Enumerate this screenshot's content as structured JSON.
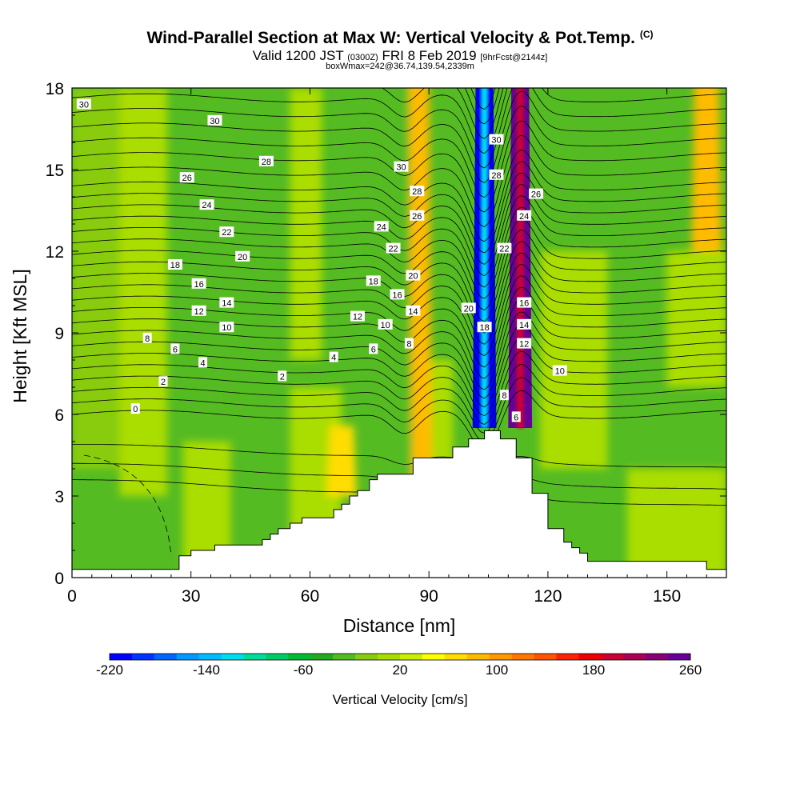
{
  "chart_data": {
    "type": "heatmap",
    "title": "Wind-Parallel Section at Max W: Vertical Velocity & Pot.Temp.",
    "title_tag": "(C)",
    "subtitle_main_a": "Valid 1200 JST",
    "subtitle_small_a": "(0300Z)",
    "subtitle_main_b": "FRI 8 Feb 2019",
    "subtitle_small_b": "[9hrFcst@2144z]",
    "subtitle2": "boxWmax=242@36.74,139.54,2339m",
    "xlabel": "Distance [nm]",
    "ylabel": "Height [Kft MSL]",
    "xlim": [
      0,
      165
    ],
    "ylim": [
      0,
      18
    ],
    "x_ticks": [
      0,
      30,
      60,
      90,
      120,
      150
    ],
    "y_ticks": [
      0,
      3,
      6,
      9,
      12,
      15,
      18
    ],
    "colorbar": {
      "label": "Vertical Velocity [cm/s]",
      "range": [
        -220,
        260
      ],
      "tick_labels": [
        -220,
        -140,
        -60,
        20,
        100,
        180,
        260
      ],
      "colors": [
        "#0000ff",
        "#0033ff",
        "#0066ff",
        "#0099ff",
        "#00bbff",
        "#00ddee",
        "#00dd99",
        "#00cc66",
        "#00bb33",
        "#22aa22",
        "#55bb22",
        "#88cc11",
        "#aadd00",
        "#ccee00",
        "#ffff00",
        "#ffdd00",
        "#ffbb00",
        "#ff9900",
        "#ff7700",
        "#ff5500",
        "#ff2200",
        "#ee0000",
        "#cc0033",
        "#aa0055",
        "#880077",
        "#660099"
      ]
    },
    "vertical_velocity_features": [
      {
        "x": 104,
        "height_range": [
          5.5,
          18
        ],
        "w_cm_s": -210
      },
      {
        "x": 113,
        "height_range": [
          5.5,
          18
        ],
        "w_cm_s": 250
      },
      {
        "x": 87,
        "height_range": [
          3,
          18
        ],
        "w_cm_s": 90
      },
      {
        "x": 82,
        "height_range": [
          3,
          18
        ],
        "w_cm_s": -20
      },
      {
        "x": 36,
        "height_range": [
          6,
          17
        ],
        "w_cm_s": -20
      },
      {
        "x": 68,
        "height_range": [
          3,
          5
        ],
        "w_cm_s": 60
      },
      {
        "x": 145,
        "height_range": [
          9,
          14
        ],
        "w_cm_s": -30
      },
      {
        "x": 160,
        "height_range": [
          12,
          18
        ],
        "w_cm_s": 80
      }
    ],
    "terrain": {
      "x": [
        0,
        10,
        25,
        27,
        30,
        33,
        36,
        39,
        42,
        45,
        48,
        50,
        52,
        55,
        58,
        62,
        64,
        66,
        68,
        70,
        72,
        75,
        77,
        80,
        82,
        84,
        86,
        88,
        90,
        94,
        96,
        98,
        100,
        102,
        104,
        106,
        108,
        110,
        112,
        114,
        116,
        118,
        120,
        122,
        124,
        126,
        128,
        130,
        135,
        140,
        150,
        155,
        158,
        160,
        165
      ],
      "height": [
        0.3,
        0.3,
        0.3,
        0.8,
        1.0,
        1.0,
        1.2,
        1.2,
        1.2,
        1.2,
        1.4,
        1.6,
        1.8,
        2.0,
        2.2,
        2.2,
        2.2,
        2.5,
        2.7,
        3.0,
        3.2,
        3.6,
        3.8,
        3.8,
        3.8,
        3.8,
        4.4,
        4.4,
        4.4,
        4.4,
        4.8,
        4.8,
        5.1,
        5.1,
        5.4,
        5.4,
        5.1,
        5.1,
        4.4,
        4.4,
        3.1,
        3.1,
        1.8,
        1.8,
        1.3,
        1.1,
        0.9,
        0.6,
        0.6,
        0.6,
        0.6,
        0.6,
        0.6,
        0.3,
        0.3
      ]
    },
    "theta_contour_labels": [
      {
        "text": "30",
        "x": 3,
        "y": 17.4
      },
      {
        "text": "30",
        "x": 36,
        "y": 16.8
      },
      {
        "text": "28",
        "x": 49,
        "y": 15.3
      },
      {
        "text": "26",
        "x": 29,
        "y": 14.7
      },
      {
        "text": "24",
        "x": 34,
        "y": 13.7
      },
      {
        "text": "22",
        "x": 39,
        "y": 12.7
      },
      {
        "text": "20",
        "x": 43,
        "y": 11.8
      },
      {
        "text": "18",
        "x": 26,
        "y": 11.5
      },
      {
        "text": "16",
        "x": 32,
        "y": 10.8
      },
      {
        "text": "14",
        "x": 39,
        "y": 10.1
      },
      {
        "text": "12",
        "x": 32,
        "y": 9.8
      },
      {
        "text": "10",
        "x": 39,
        "y": 9.2
      },
      {
        "text": "8",
        "x": 19,
        "y": 8.8
      },
      {
        "text": "6",
        "x": 26,
        "y": 8.4
      },
      {
        "text": "4",
        "x": 33,
        "y": 7.9
      },
      {
        "text": "2",
        "x": 23,
        "y": 7.2
      },
      {
        "text": "0",
        "x": 16,
        "y": 6.2
      },
      {
        "text": "30",
        "x": 83,
        "y": 15.1
      },
      {
        "text": "28",
        "x": 87,
        "y": 14.2
      },
      {
        "text": "26",
        "x": 87,
        "y": 13.3
      },
      {
        "text": "24",
        "x": 78,
        "y": 12.9
      },
      {
        "text": "22",
        "x": 81,
        "y": 12.1
      },
      {
        "text": "20",
        "x": 86,
        "y": 11.1
      },
      {
        "text": "18",
        "x": 76,
        "y": 10.9
      },
      {
        "text": "16",
        "x": 82,
        "y": 10.4
      },
      {
        "text": "14",
        "x": 86,
        "y": 9.8
      },
      {
        "text": "12",
        "x": 72,
        "y": 9.6
      },
      {
        "text": "10",
        "x": 79,
        "y": 9.3
      },
      {
        "text": "8",
        "x": 85,
        "y": 8.6
      },
      {
        "text": "6",
        "x": 76,
        "y": 8.4
      },
      {
        "text": "4",
        "x": 66,
        "y": 8.1
      },
      {
        "text": "2",
        "x": 53,
        "y": 7.4
      },
      {
        "text": "30",
        "x": 107,
        "y": 16.1
      },
      {
        "text": "28",
        "x": 107,
        "y": 14.8
      },
      {
        "text": "26",
        "x": 117,
        "y": 14.1
      },
      {
        "text": "24",
        "x": 114,
        "y": 13.3
      },
      {
        "text": "22",
        "x": 109,
        "y": 12.1
      },
      {
        "text": "20",
        "x": 100,
        "y": 9.9
      },
      {
        "text": "18",
        "x": 104,
        "y": 9.2
      },
      {
        "text": "16",
        "x": 114,
        "y": 10.1
      },
      {
        "text": "14",
        "x": 114,
        "y": 9.3
      },
      {
        "text": "12",
        "x": 114,
        "y": 8.6
      },
      {
        "text": "10",
        "x": 123,
        "y": 7.6
      },
      {
        "text": "8",
        "x": 109,
        "y": 6.7
      },
      {
        "text": "6",
        "x": 112,
        "y": 5.9
      }
    ]
  }
}
